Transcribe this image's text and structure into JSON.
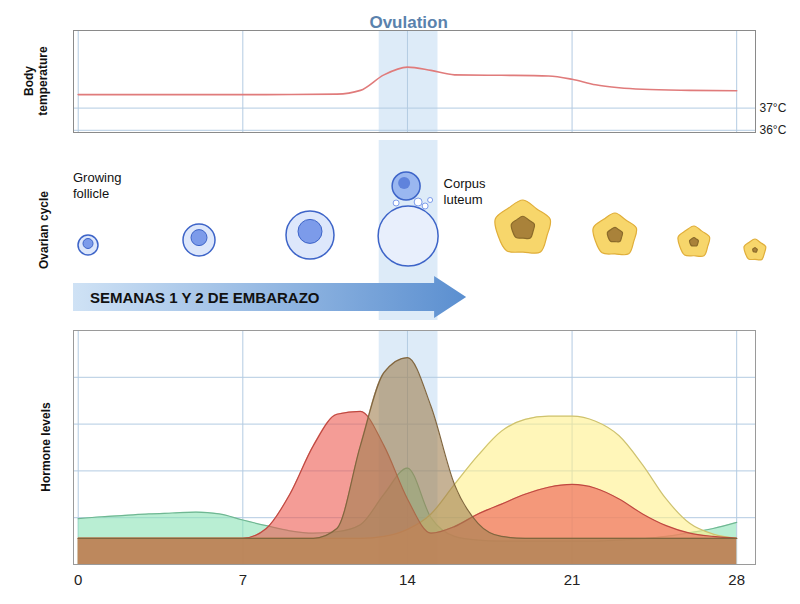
{
  "chart_data": [
    {
      "type": "line",
      "y_label": "Body temperature",
      "x": [
        0,
        4,
        8,
        11,
        12,
        13,
        14,
        15,
        16,
        18,
        20,
        21,
        22,
        23,
        24,
        26,
        28
      ],
      "values": [
        37.61,
        37.61,
        37.61,
        37.63,
        37.8,
        38.5,
        38.85,
        38.7,
        38.5,
        38.48,
        38.45,
        38.3,
        38.05,
        37.92,
        37.85,
        37.8,
        37.78
      ],
      "color": "#e07b7b",
      "xlim": [
        -0.2,
        28.8
      ],
      "xticks": [
        0,
        7,
        14,
        21,
        28
      ],
      "ylim": [
        35.9,
        40.5
      ],
      "yticks": [
        {
          "value": 36,
          "label": "36°C"
        },
        {
          "value": 37,
          "label": "37°C"
        }
      ],
      "grid": true,
      "tick_labels": "y",
      "annotations": [
        {
          "text": "Ovulation",
          "x_start": 12.8,
          "x_end": 15.3
        }
      ]
    },
    {
      "type": "area",
      "y_label": "Hormone levels",
      "x": [
        0,
        1,
        2,
        3,
        4,
        5,
        6,
        7,
        8,
        9,
        10,
        11,
        12,
        13,
        14,
        15,
        16,
        17,
        18,
        19,
        20,
        21,
        22,
        23,
        24,
        25,
        26,
        27,
        28
      ],
      "series": [
        {
          "color": "#8be3b6",
          "values": [
            0.98,
            1.02,
            1.05,
            1.08,
            1.1,
            1.12,
            1.08,
            0.95,
            0.83,
            0.72,
            0.67,
            0.7,
            0.85,
            1.5,
            2.06,
            1.0,
            0.6,
            0.52,
            0.5,
            0.5,
            0.5,
            0.5,
            0.5,
            0.52,
            0.55,
            0.6,
            0.68,
            0.77,
            0.9
          ]
        },
        {
          "color": "#fff08a",
          "values": [
            0.56,
            0.56,
            0.56,
            0.56,
            0.56,
            0.56,
            0.56,
            0.56,
            0.56,
            0.56,
            0.56,
            0.56,
            0.56,
            0.6,
            0.75,
            1.08,
            1.71,
            2.33,
            2.85,
            3.1,
            3.17,
            3.17,
            3.06,
            2.75,
            2.13,
            1.4,
            0.88,
            0.65,
            0.56
          ]
        },
        {
          "color": "#ec5a50",
          "values": [
            0.56,
            0.56,
            0.56,
            0.56,
            0.56,
            0.56,
            0.56,
            0.56,
            0.77,
            1.5,
            2.54,
            3.21,
            3.27,
            2.54,
            1.4,
            0.67,
            0.81,
            1.08,
            1.29,
            1.5,
            1.65,
            1.71,
            1.63,
            1.4,
            1.08,
            0.83,
            0.67,
            0.6,
            0.56
          ]
        },
        {
          "color": "#a07e4e",
          "values": [
            0.56,
            0.56,
            0.56,
            0.56,
            0.56,
            0.56,
            0.56,
            0.56,
            0.56,
            0.56,
            0.56,
            0.77,
            2.54,
            4.1,
            4.42,
            3.38,
            1.71,
            0.88,
            0.6,
            0.56,
            0.56,
            0.56,
            0.56,
            0.56,
            0.56,
            0.56,
            0.56,
            0.56,
            0.56
          ]
        }
      ],
      "xlim": [
        -0.2,
        28.8
      ],
      "xticks": [
        0,
        7,
        14,
        21,
        28
      ],
      "ylim": [
        0,
        5
      ],
      "yticks": [
        0,
        1,
        2,
        3,
        4,
        5
      ],
      "grid": true,
      "tick_labels": "x"
    }
  ],
  "ovarian_cycle": {
    "axis_label": "Ovarian cycle",
    "start_label": "Growing follicle",
    "end_label": "Corpus luteum",
    "arrow_text": "SEMANAS 1 Y 2 DE EMBARAZO"
  }
}
